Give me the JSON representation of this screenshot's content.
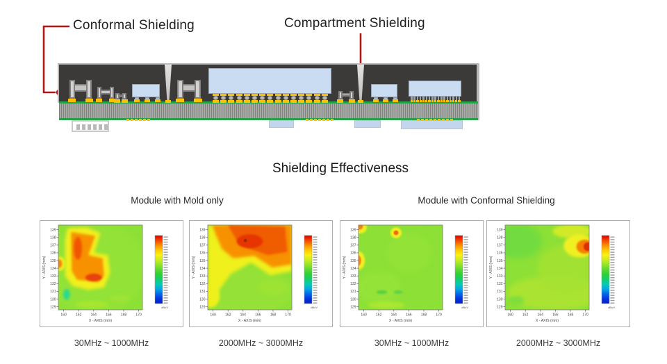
{
  "annotations": {
    "conformal": "Conformal Shielding",
    "compartment": "Compartment Shielding"
  },
  "section_title": "Shielding Effectiveness",
  "group_titles": [
    "Module with Mold only",
    "Module with Conformal Shielding"
  ],
  "colors": {
    "annotation_red": "#b11715",
    "mold_dark": "#3b3a38",
    "shield_gray": "#b9b9b9",
    "pcb_green": "#27a149",
    "solder_yellow": "#ffc000",
    "die_blue": "#c9dcf2",
    "heatmap_green": "#8ce036"
  },
  "colorbar_stops": [
    "#dc0000",
    "#f44400",
    "#fc8c00",
    "#ffc800",
    "#fcf014",
    "#ccee1c",
    "#94e428",
    "#5cd830",
    "#2cd038",
    "#14cc6c",
    "#04ccb4",
    "#04a8e4",
    "#0468e8",
    "#0434e0",
    "#0420c0"
  ],
  "chart_data": [
    {
      "type": "heatmap",
      "group": "Module with Mold only",
      "caption": "30MHz ~ 1000MHz",
      "xlabel": "X - AXIS  (mm)",
      "ylabel": "Y - AXIS  (mm)",
      "x_ticks": [
        160,
        162,
        164,
        166,
        168,
        170
      ],
      "y_ticks": [
        139,
        138,
        137,
        136,
        135,
        134,
        133,
        132,
        131,
        130,
        129
      ],
      "xlim": [
        159.3,
        170.5
      ],
      "ylim": [
        128.6,
        139.6
      ],
      "background": "#8ce036",
      "colorbar_unit": "dBuV",
      "legend_position": "right",
      "features": [
        {
          "shape": "ellipse",
          "cx": 164.0,
          "cy": 134.0,
          "rx": 7.0,
          "ry": 6.0,
          "color": "#97e437",
          "blur": 4,
          "opacity": 0.6
        },
        {
          "shape": "ellipse",
          "cx": 160.4,
          "cy": 130.6,
          "rx": 0.45,
          "ry": 0.7,
          "color": "#2fd98c",
          "blur": 1.5,
          "opacity": 1
        },
        {
          "shape": "polygon",
          "points": [
            [
              160.5,
              139.2
            ],
            [
              163.0,
              139.3
            ],
            [
              164.9,
              138.6
            ],
            [
              164.1,
              136.0
            ],
            [
              165.9,
              135.7
            ],
            [
              166.2,
              133.4
            ],
            [
              165.4,
              131.5
            ],
            [
              163.3,
              131.2
            ],
            [
              161.2,
              131.7
            ],
            [
              160.2,
              133.0
            ],
            [
              160.2,
              137.6
            ]
          ],
          "color": "#f2ef1d",
          "blur": 2.5,
          "opacity": 1
        },
        {
          "shape": "polygon",
          "points": [
            [
              161.0,
              138.7
            ],
            [
              164.2,
              138.2
            ],
            [
              163.3,
              135.7
            ],
            [
              165.2,
              135.3
            ],
            [
              165.4,
              133.0
            ],
            [
              164.6,
              132.2
            ],
            [
              161.8,
              132.5
            ],
            [
              161.1,
              133.6
            ],
            [
              161.0,
              137.8
            ]
          ],
          "color": "#f79103",
          "blur": 1.8,
          "opacity": 1
        },
        {
          "shape": "ellipse",
          "cx": 161.9,
          "cy": 136.6,
          "rx": 0.55,
          "ry": 1.5,
          "color": "#ef5506",
          "blur": 1.5,
          "opacity": 1
        },
        {
          "shape": "ellipse",
          "cx": 164.0,
          "cy": 132.8,
          "rx": 1.1,
          "ry": 0.5,
          "color": "#e84311",
          "blur": 1.2,
          "opacity": 1
        },
        {
          "shape": "ellipse",
          "cx": 159.5,
          "cy": 134.6,
          "rx": 0.7,
          "ry": 0.9,
          "color": "#eff01e",
          "blur": 1.5,
          "opacity": 1
        },
        {
          "shape": "ellipse",
          "cx": 159.4,
          "cy": 134.6,
          "rx": 0.4,
          "ry": 0.55,
          "color": "#f5820a",
          "blur": 1.2,
          "opacity": 1
        },
        {
          "shape": "ellipse",
          "cx": 163.8,
          "cy": 129.3,
          "rx": 2.2,
          "ry": 0.5,
          "color": "#aae72e",
          "blur": 2,
          "opacity": 0.8
        },
        {
          "shape": "ellipse",
          "cx": 167.5,
          "cy": 130.1,
          "rx": 1.4,
          "ry": 0.5,
          "color": "#9fe434",
          "blur": 2,
          "opacity": 0.8
        }
      ]
    },
    {
      "type": "heatmap",
      "group": "Module with Mold only",
      "caption": "2000MHz ~ 3000MHz",
      "xlabel": "X - AXIS  (mm)",
      "ylabel": "Y - AXIS  (mm)",
      "x_ticks": [
        160,
        162,
        164,
        166,
        168,
        170
      ],
      "y_ticks": [
        139,
        138,
        137,
        136,
        135,
        134,
        133,
        132,
        131,
        130,
        129
      ],
      "xlim": [
        159.3,
        170.5
      ],
      "ylim": [
        128.6,
        139.6
      ],
      "background": "#8ce036",
      "colorbar_unit": "dBuV",
      "legend_position": "right",
      "features": [
        {
          "shape": "ellipse",
          "cx": 164.0,
          "cy": 131.0,
          "rx": 7.0,
          "ry": 3.0,
          "color": "#9ae239",
          "blur": 4,
          "opacity": 0.7
        },
        {
          "shape": "polygon",
          "points": [
            [
              159.3,
              139.6
            ],
            [
              170.5,
              139.6
            ],
            [
              170.5,
              133.6
            ],
            [
              167.6,
              133.1
            ],
            [
              165.1,
              134.7
            ],
            [
              162.4,
              133.3
            ],
            [
              160.7,
              131.0
            ],
            [
              159.3,
              130.0
            ]
          ],
          "color": "#eff01e",
          "blur": 2.5,
          "opacity": 1
        },
        {
          "shape": "polygon",
          "points": [
            [
              159.9,
              139.6
            ],
            [
              170.5,
              139.6
            ],
            [
              170.5,
              134.5
            ],
            [
              167.9,
              134.1
            ],
            [
              165.5,
              135.6
            ],
            [
              162.7,
              135.3
            ],
            [
              161.2,
              136.5
            ],
            [
              160.4,
              138.3
            ]
          ],
          "color": "#f79103",
          "blur": 2,
          "opacity": 1
        },
        {
          "shape": "polygon",
          "points": [
            [
              162.0,
              139.6
            ],
            [
              169.6,
              139.4
            ],
            [
              169.9,
              136.1
            ],
            [
              167.3,
              135.7
            ],
            [
              164.6,
              136.6
            ],
            [
              163.1,
              137.7
            ]
          ],
          "color": "#f05c04",
          "blur": 1.6,
          "opacity": 1
        },
        {
          "shape": "ellipse",
          "cx": 164.9,
          "cy": 137.5,
          "rx": 1.75,
          "ry": 0.9,
          "color": "#e63503",
          "blur": 1.2,
          "opacity": 1
        },
        {
          "shape": "ellipse",
          "cx": 164.3,
          "cy": 137.6,
          "rx": 0.2,
          "ry": 0.2,
          "color": "#8f2a06",
          "blur": 0.4,
          "opacity": 1
        },
        {
          "shape": "ellipse",
          "cx": 159.7,
          "cy": 130.4,
          "rx": 1.2,
          "ry": 1.5,
          "color": "#eef01f",
          "blur": 1.8,
          "opacity": 1
        },
        {
          "shape": "ellipse",
          "cx": 168.0,
          "cy": 131.5,
          "rx": 2.0,
          "ry": 1.0,
          "color": "#a0e433",
          "blur": 3,
          "opacity": 0.7
        }
      ]
    },
    {
      "type": "heatmap",
      "group": "Module with Conformal Shielding",
      "caption": "30MHz ~ 1000MHz",
      "xlabel": "X - AXIS  (mm)",
      "ylabel": "Y - AXIS  (mm)",
      "x_ticks": [
        160,
        162,
        164,
        166,
        168,
        170
      ],
      "y_ticks": [
        139,
        138,
        137,
        136,
        135,
        134,
        133,
        132,
        131,
        130,
        129
      ],
      "xlim": [
        159.3,
        170.5
      ],
      "ylim": [
        128.6,
        139.6
      ],
      "background": "#8ce036",
      "colorbar_unit": "dBuV",
      "legend_position": "right",
      "features": [
        {
          "shape": "ellipse",
          "cx": 166.0,
          "cy": 136.0,
          "rx": 3.0,
          "ry": 2.5,
          "color": "#95e338",
          "blur": 4,
          "opacity": 0.8
        },
        {
          "shape": "ellipse",
          "cx": 162.0,
          "cy": 131.5,
          "rx": 3.0,
          "ry": 2.0,
          "color": "#98e53b",
          "blur": 4,
          "opacity": 0.7
        },
        {
          "shape": "ellipse",
          "cx": 159.5,
          "cy": 139.3,
          "rx": 0.9,
          "ry": 0.8,
          "color": "#f0ef20",
          "blur": 1.2,
          "opacity": 1
        },
        {
          "shape": "ellipse",
          "cx": 159.4,
          "cy": 139.5,
          "rx": 0.5,
          "ry": 0.5,
          "color": "#f5820a",
          "blur": 0.9,
          "opacity": 1
        },
        {
          "shape": "ellipse",
          "cx": 164.3,
          "cy": 138.6,
          "rx": 0.75,
          "ry": 0.7,
          "color": "#f0ef20",
          "blur": 1.0,
          "opacity": 1
        },
        {
          "shape": "ellipse",
          "cx": 164.3,
          "cy": 138.6,
          "rx": 0.32,
          "ry": 0.3,
          "color": "#f2690a",
          "blur": 0.6,
          "opacity": 1
        },
        {
          "shape": "ellipse",
          "cx": 159.3,
          "cy": 135.0,
          "rx": 0.85,
          "ry": 1.2,
          "color": "#f0ef20",
          "blur": 1.2,
          "opacity": 1
        },
        {
          "shape": "ellipse",
          "cx": 159.2,
          "cy": 135.0,
          "rx": 0.45,
          "ry": 0.7,
          "color": "#f5820a",
          "blur": 0.9,
          "opacity": 1
        },
        {
          "shape": "ellipse",
          "cx": 163.0,
          "cy": 129.2,
          "rx": 2.5,
          "ry": 0.5,
          "color": "#b2e930",
          "blur": 2,
          "opacity": 0.8
        },
        {
          "shape": "ellipse",
          "cx": 162.4,
          "cy": 130.9,
          "rx": 0.7,
          "ry": 0.25,
          "color": "#57cf43",
          "blur": 1,
          "opacity": 0.9
        },
        {
          "shape": "ellipse",
          "cx": 164.6,
          "cy": 130.9,
          "rx": 0.6,
          "ry": 0.25,
          "color": "#5ed148",
          "blur": 1,
          "opacity": 0.9
        }
      ]
    },
    {
      "type": "heatmap",
      "group": "Module with Conformal Shielding",
      "caption": "2000MHz ~ 3000MHz",
      "xlabel": "X - AXIS  (mm)",
      "ylabel": "Y - AXIS  (mm)",
      "x_ticks": [
        160,
        162,
        164,
        166,
        168,
        170
      ],
      "y_ticks": [
        139,
        138,
        137,
        136,
        135,
        134,
        133,
        132,
        131,
        130,
        129
      ],
      "xlim": [
        159.3,
        170.5
      ],
      "ylim": [
        128.6,
        139.6
      ],
      "background": "#8ce036",
      "colorbar_unit": "dBuV",
      "legend_position": "right",
      "features": [
        {
          "shape": "ellipse",
          "cx": 166.0,
          "cy": 130.8,
          "rx": 6.5,
          "ry": 2.2,
          "color": "#aee430",
          "blur": 4,
          "opacity": 0.9
        },
        {
          "shape": "ellipse",
          "cx": 167.5,
          "cy": 134.0,
          "rx": 4.0,
          "ry": 3.0,
          "color": "#a5e232",
          "blur": 4,
          "opacity": 0.8
        },
        {
          "shape": "ellipse",
          "cx": 161.0,
          "cy": 137.5,
          "rx": 3.2,
          "ry": 2.2,
          "color": "#6fdb40",
          "blur": 4,
          "opacity": 0.9
        },
        {
          "shape": "ellipse",
          "cx": 160.8,
          "cy": 129.8,
          "rx": 1.0,
          "ry": 0.6,
          "color": "#7ddd3d",
          "blur": 2,
          "opacity": 0.9
        },
        {
          "shape": "ellipse",
          "cx": 168.2,
          "cy": 138.8,
          "rx": 2.6,
          "ry": 0.9,
          "color": "#d9ec26",
          "blur": 2.5,
          "opacity": 0.9
        },
        {
          "shape": "ellipse",
          "cx": 169.2,
          "cy": 136.9,
          "rx": 2.1,
          "ry": 1.5,
          "color": "#f0ef20",
          "blur": 1.8,
          "opacity": 1
        },
        {
          "shape": "ellipse",
          "cx": 169.9,
          "cy": 136.8,
          "rx": 1.1,
          "ry": 0.9,
          "color": "#f57f05",
          "blur": 1.2,
          "opacity": 1
        },
        {
          "shape": "ellipse",
          "cx": 170.3,
          "cy": 136.8,
          "rx": 0.55,
          "ry": 0.55,
          "color": "#df2d04",
          "blur": 0.8,
          "opacity": 1
        }
      ]
    }
  ]
}
